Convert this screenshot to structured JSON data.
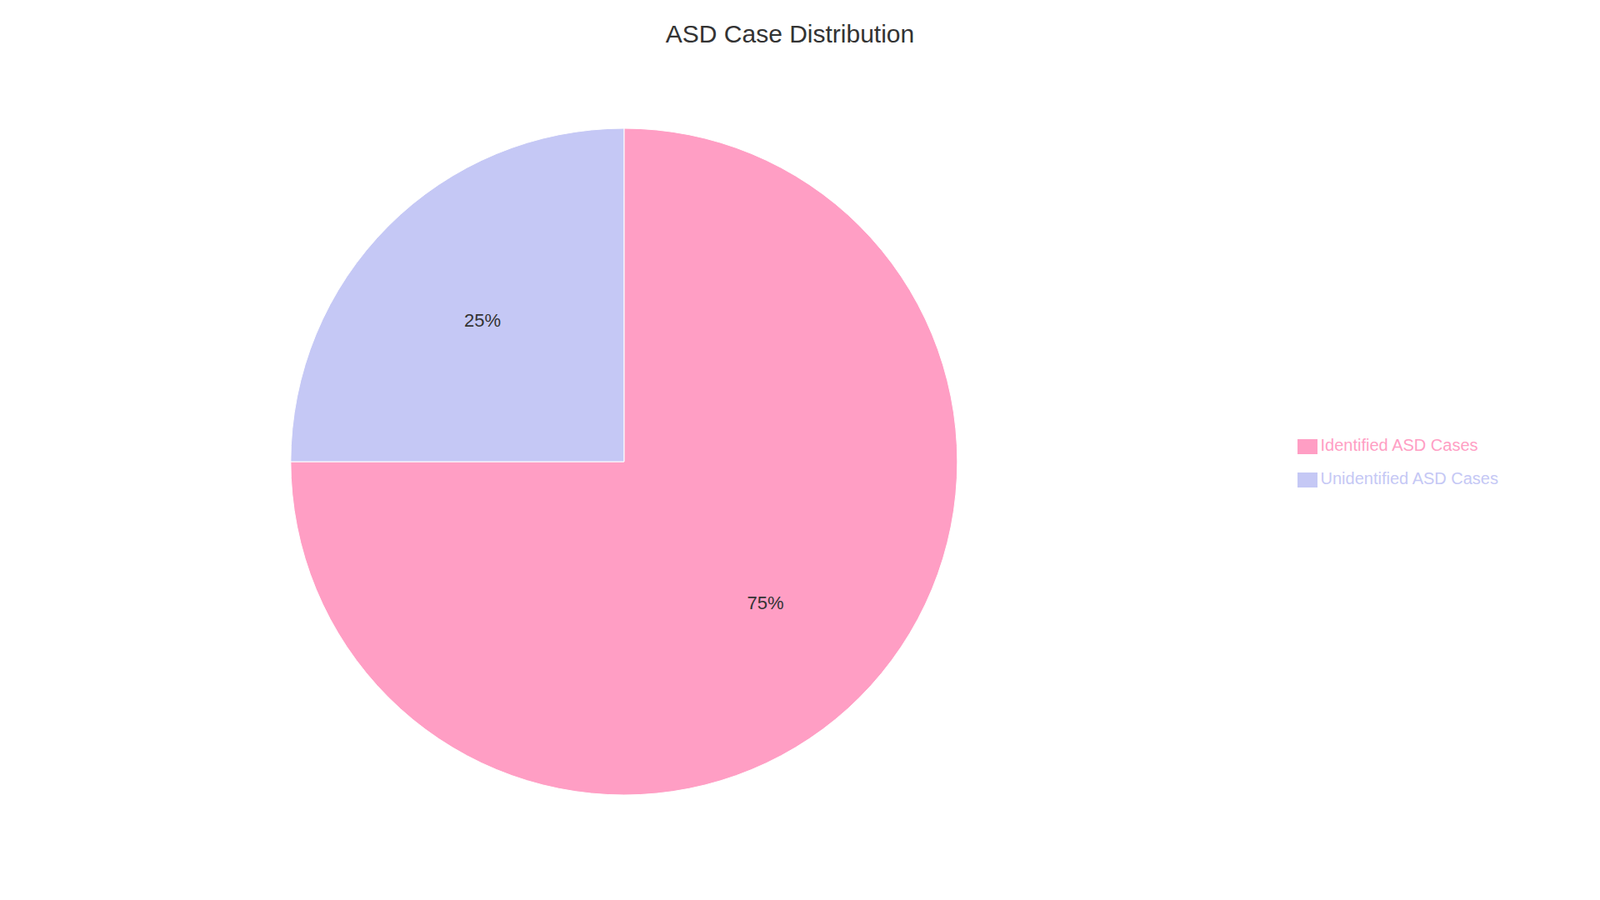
{
  "chart_data": {
    "type": "pie",
    "title": "ASD Case Distribution",
    "categories": [
      "Identified ASD Cases",
      "Unidentified ASD Cases"
    ],
    "values": [
      75,
      25
    ],
    "value_labels": [
      "75%",
      "25%"
    ],
    "colors": [
      "#FF9EC4",
      "#C5C8F5"
    ],
    "data_labels": true,
    "legend": "right"
  }
}
